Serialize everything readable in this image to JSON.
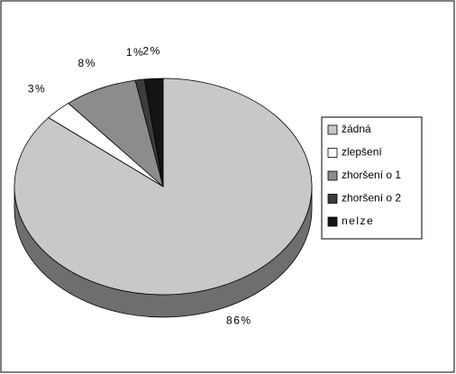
{
  "chart_data": {
    "type": "pie3d",
    "categories": [
      "žádná",
      "zlepšení",
      "zhoršení o 1",
      "zhoršení o 2",
      "nelze"
    ],
    "values": [
      86,
      3,
      8,
      1,
      2
    ],
    "value_labels": [
      "86%",
      "3%",
      "8%",
      "1%",
      "2%"
    ],
    "colors": [
      "#c8c8c8",
      "#ffffff",
      "#8c8c8c",
      "#3c3c3c",
      "#141414"
    ],
    "legend": "right"
  }
}
